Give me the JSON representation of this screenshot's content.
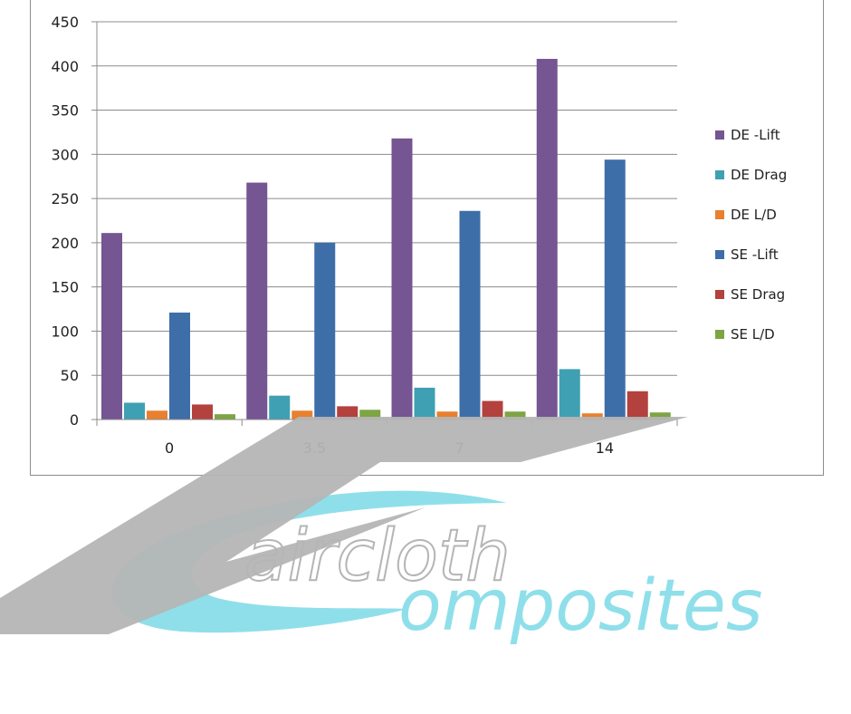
{
  "chart_data": {
    "type": "bar",
    "title": "",
    "xlabel": "",
    "ylabel": "",
    "categories": [
      "0",
      "3.5",
      "7",
      "14"
    ],
    "ylim": [
      0,
      450
    ],
    "yticks": [
      0,
      50,
      100,
      150,
      200,
      250,
      300,
      350,
      400,
      450
    ],
    "grid": true,
    "legend_position": "right",
    "series": [
      {
        "name": "DE -Lift",
        "color": "#755592",
        "values": [
          211,
          268,
          318,
          408
        ]
      },
      {
        "name": "DE Drag",
        "color": "#3fa0b3",
        "values": [
          19,
          27,
          36,
          57
        ]
      },
      {
        "name": "DE L/D",
        "color": "#e8802f",
        "values": [
          10,
          10,
          9,
          7
        ]
      },
      {
        "name": "SE -Lift",
        "color": "#3e6ea8",
        "values": [
          121,
          200,
          236,
          294
        ]
      },
      {
        "name": "SE Drag",
        "color": "#b3413d",
        "values": [
          17,
          15,
          21,
          32
        ]
      },
      {
        "name": "SE L/D",
        "color": "#7ea444",
        "values": [
          6,
          11,
          9,
          8
        ]
      }
    ]
  },
  "logo": {
    "line1": "aircloth",
    "line2": "omposites",
    "colors": {
      "gray": "#b5b5b5",
      "cyan": "#8fdfea"
    }
  }
}
